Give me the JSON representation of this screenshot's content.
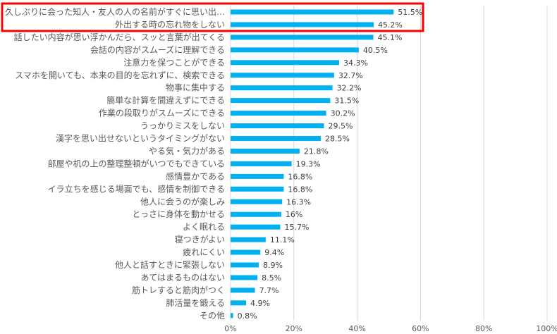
{
  "chart_data": {
    "type": "bar",
    "orientation": "horizontal",
    "categories": [
      "久しぶりに会った知人・友人の人の名前がすぐに思い出…",
      "外出する時の忘れ物をしない",
      "話したい内容が思い浮かんだら、スッと言葉が出てくる",
      "会話の内容がスムーズに理解できる",
      "注意力を保つことができる",
      "スマホを開いても、本来の目的を忘れずに、検索できる",
      "物事に集中する",
      "簡単な計算を間違えずにできる",
      "作業の段取りがスムーズにできる",
      "うっかりミスをしない",
      "漢字を思い出せないというタイミングがない",
      "やる気・気力がある",
      "部屋や机の上の整理整頓がいつでもできている",
      "感情豊かである",
      "イラ立ちを感じる場面でも、感情を制御できる",
      "他人に会うのが楽しみ",
      "とっさに身体を動かせる",
      "よく眠れる",
      "寝つきがよい",
      "疲れにくい",
      "他人と話すときに緊張しない",
      "あてはまるものはない",
      "筋トレすると筋肉がつく",
      "肺活量を鍛える",
      "その他"
    ],
    "values": [
      51.5,
      45.2,
      45.1,
      40.5,
      34.3,
      32.7,
      32.2,
      31.5,
      30.2,
      29.5,
      28.5,
      21.8,
      19.3,
      16.8,
      16.8,
      16.3,
      16,
      15.7,
      11.1,
      9.4,
      8.9,
      8.5,
      7.7,
      4.9,
      0.8
    ],
    "value_labels": [
      "51.5%",
      "45.2%",
      "45.1%",
      "40.5%",
      "34.3%",
      "32.7%",
      "32.2%",
      "31.5%",
      "30.2%",
      "29.5%",
      "28.5%",
      "21.8%",
      "19.3%",
      "16.8%",
      "16.8%",
      "16.3%",
      "16%",
      "15.7%",
      "11.1%",
      "9.4%",
      "8.9%",
      "8.5%",
      "7.7%",
      "4.9%",
      "0.8%"
    ],
    "xlim": [
      0,
      100
    ],
    "x_ticks": [
      0,
      20,
      40,
      60,
      80,
      100
    ],
    "x_tick_labels": [
      "0%",
      "20%",
      "40%",
      "60%",
      "80%",
      "100%"
    ],
    "grid": true,
    "legend": "none",
    "highlighted_categories": [
      0,
      1
    ],
    "title": "",
    "xlabel": "",
    "ylabel": ""
  },
  "colors": {
    "bar": "#00B0F0",
    "grid": "#D9D9D9",
    "highlight_border": "#FF0000",
    "label_text": "#595959",
    "value_text": "#404040"
  }
}
